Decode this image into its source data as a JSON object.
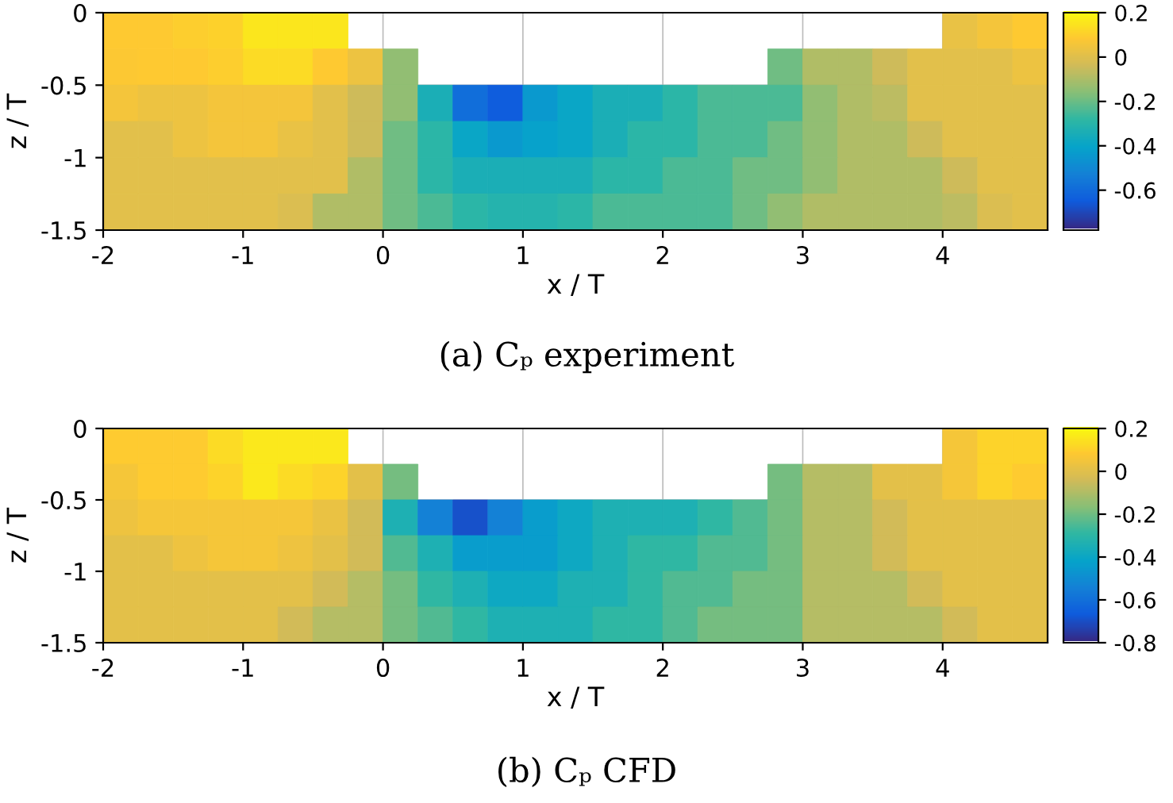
{
  "chart_data": [
    {
      "type": "heatmap",
      "xlabel": "x / T",
      "ylabel": "z / T",
      "annotations": [
        "(a) Cₚ experiment"
      ],
      "x": [
        -1.875,
        -1.625,
        -1.375,
        -1.125,
        -0.875,
        -0.625,
        -0.375,
        -0.125,
        0.125,
        0.375,
        0.625,
        0.875,
        1.125,
        1.375,
        1.625,
        1.875,
        2.125,
        2.375,
        2.625,
        2.875,
        3.125,
        3.375,
        3.625,
        3.875,
        4.125,
        4.375,
        4.625
      ],
      "y": [
        -0.125,
        -0.375,
        -0.625,
        -0.875,
        -1.125,
        -1.375
      ],
      "xlim": [
        -2,
        4.75
      ],
      "ylim": [
        -1.5,
        0
      ],
      "xticks": [
        -2,
        -1,
        0,
        1,
        2,
        3,
        4
      ],
      "yticks": [
        0,
        -0.5,
        -1,
        -1.5
      ],
      "grid": true,
      "clim": [
        -0.78,
        0.2
      ],
      "cticks": [
        -0.6,
        -0.4,
        -0.2,
        0,
        0.2
      ],
      "cells": [
        [
          0.08,
          0.08,
          0.09,
          0.1,
          0.15,
          0.15,
          0.15,
          null,
          null,
          null,
          null,
          null,
          null,
          null,
          null,
          null,
          null,
          null,
          null,
          null,
          null,
          null,
          null,
          null,
          0.02,
          0.05,
          0.08
        ],
        [
          0.07,
          0.08,
          0.08,
          0.09,
          0.12,
          0.12,
          0.08,
          0.03,
          -0.15,
          null,
          null,
          null,
          null,
          null,
          null,
          null,
          null,
          null,
          null,
          -0.2,
          -0.1,
          -0.1,
          -0.05,
          0.0,
          0.0,
          0.0,
          0.03
        ],
        [
          0.05,
          0.03,
          0.03,
          0.05,
          0.05,
          0.05,
          0.0,
          -0.05,
          -0.15,
          -0.35,
          -0.6,
          -0.65,
          -0.45,
          -0.4,
          -0.35,
          -0.35,
          -0.3,
          -0.25,
          -0.25,
          -0.25,
          -0.15,
          -0.1,
          -0.08,
          0.0,
          0.0,
          0.0,
          0.0
        ],
        [
          0.0,
          0.0,
          0.03,
          0.05,
          0.05,
          0.02,
          0.0,
          -0.05,
          -0.2,
          -0.3,
          -0.4,
          -0.45,
          -0.42,
          -0.4,
          -0.35,
          -0.3,
          -0.3,
          -0.25,
          -0.25,
          -0.2,
          -0.15,
          -0.1,
          -0.1,
          -0.05,
          0.0,
          0.0,
          0.0
        ],
        [
          0.0,
          0.0,
          0.0,
          0.0,
          0.0,
          0.0,
          0.0,
          -0.1,
          -0.2,
          -0.3,
          -0.35,
          -0.35,
          -0.35,
          -0.35,
          -0.3,
          -0.3,
          -0.25,
          -0.25,
          -0.2,
          -0.2,
          -0.15,
          -0.1,
          -0.1,
          -0.1,
          -0.05,
          0.0,
          0.0
        ],
        [
          0.0,
          0.0,
          0.0,
          0.0,
          0.0,
          -0.02,
          -0.1,
          -0.1,
          -0.2,
          -0.25,
          -0.3,
          -0.32,
          -0.32,
          -0.3,
          -0.25,
          -0.25,
          -0.25,
          -0.25,
          -0.2,
          -0.15,
          -0.1,
          -0.1,
          -0.1,
          -0.1,
          -0.08,
          -0.02,
          0.0
        ]
      ]
    },
    {
      "type": "heatmap",
      "xlabel": "x / T",
      "ylabel": "z / T",
      "annotations": [
        "(b) Cₚ CFD"
      ],
      "x": [
        -1.875,
        -1.625,
        -1.375,
        -1.125,
        -0.875,
        -0.625,
        -0.375,
        -0.125,
        0.125,
        0.375,
        0.625,
        0.875,
        1.125,
        1.375,
        1.625,
        1.875,
        2.125,
        2.375,
        2.625,
        2.875,
        3.125,
        3.375,
        3.625,
        3.875,
        4.125,
        4.375,
        4.625
      ],
      "y": [
        -0.125,
        -0.375,
        -0.625,
        -0.875,
        -1.125,
        -1.375
      ],
      "xlim": [
        -2,
        4.75
      ],
      "ylim": [
        -1.5,
        0
      ],
      "xticks": [
        -2,
        -1,
        0,
        1,
        2,
        3,
        4
      ],
      "yticks": [
        0,
        -0.5,
        -1,
        -1.5
      ],
      "grid": true,
      "clim": [
        -0.8,
        0.2
      ],
      "cticks": [
        -0.8,
        -0.6,
        -0.4,
        -0.2,
        0,
        0.2
      ],
      "cells": [
        [
          0.08,
          0.08,
          0.08,
          0.12,
          0.15,
          0.15,
          0.15,
          null,
          null,
          null,
          null,
          null,
          null,
          null,
          null,
          null,
          null,
          null,
          null,
          null,
          null,
          null,
          null,
          null,
          0.05,
          0.1,
          0.1
        ],
        [
          0.05,
          0.08,
          0.08,
          0.1,
          0.15,
          0.12,
          0.1,
          0.0,
          -0.2,
          null,
          null,
          null,
          null,
          null,
          null,
          null,
          null,
          null,
          null,
          -0.2,
          -0.1,
          -0.1,
          0.0,
          0.0,
          0.05,
          0.1,
          0.08
        ],
        [
          0.03,
          0.05,
          0.05,
          0.05,
          0.05,
          0.05,
          0.02,
          -0.05,
          -0.35,
          -0.55,
          -0.7,
          -0.55,
          -0.45,
          -0.4,
          -0.35,
          -0.35,
          -0.35,
          -0.3,
          -0.25,
          -0.2,
          -0.1,
          -0.1,
          -0.05,
          0.0,
          0.0,
          0.0,
          0.0
        ],
        [
          0.0,
          0.0,
          0.03,
          0.05,
          0.05,
          0.03,
          0.0,
          -0.05,
          -0.25,
          -0.35,
          -0.45,
          -0.45,
          -0.45,
          -0.4,
          -0.35,
          -0.3,
          -0.3,
          -0.25,
          -0.25,
          -0.2,
          -0.1,
          -0.1,
          -0.05,
          0.0,
          0.0,
          0.0,
          0.0
        ],
        [
          0.0,
          0.0,
          0.0,
          0.0,
          0.0,
          0.0,
          -0.05,
          -0.1,
          -0.2,
          -0.3,
          -0.35,
          -0.4,
          -0.4,
          -0.35,
          -0.35,
          -0.3,
          -0.25,
          -0.25,
          -0.2,
          -0.2,
          -0.1,
          -0.1,
          -0.1,
          -0.05,
          0.0,
          0.0,
          0.0
        ],
        [
          0.0,
          0.0,
          0.0,
          0.0,
          0.0,
          -0.05,
          -0.1,
          -0.1,
          -0.2,
          -0.25,
          -0.3,
          -0.35,
          -0.35,
          -0.35,
          -0.3,
          -0.3,
          -0.25,
          -0.2,
          -0.2,
          -0.2,
          -0.1,
          -0.1,
          -0.1,
          -0.1,
          -0.05,
          0.0,
          0.0
        ]
      ]
    }
  ]
}
